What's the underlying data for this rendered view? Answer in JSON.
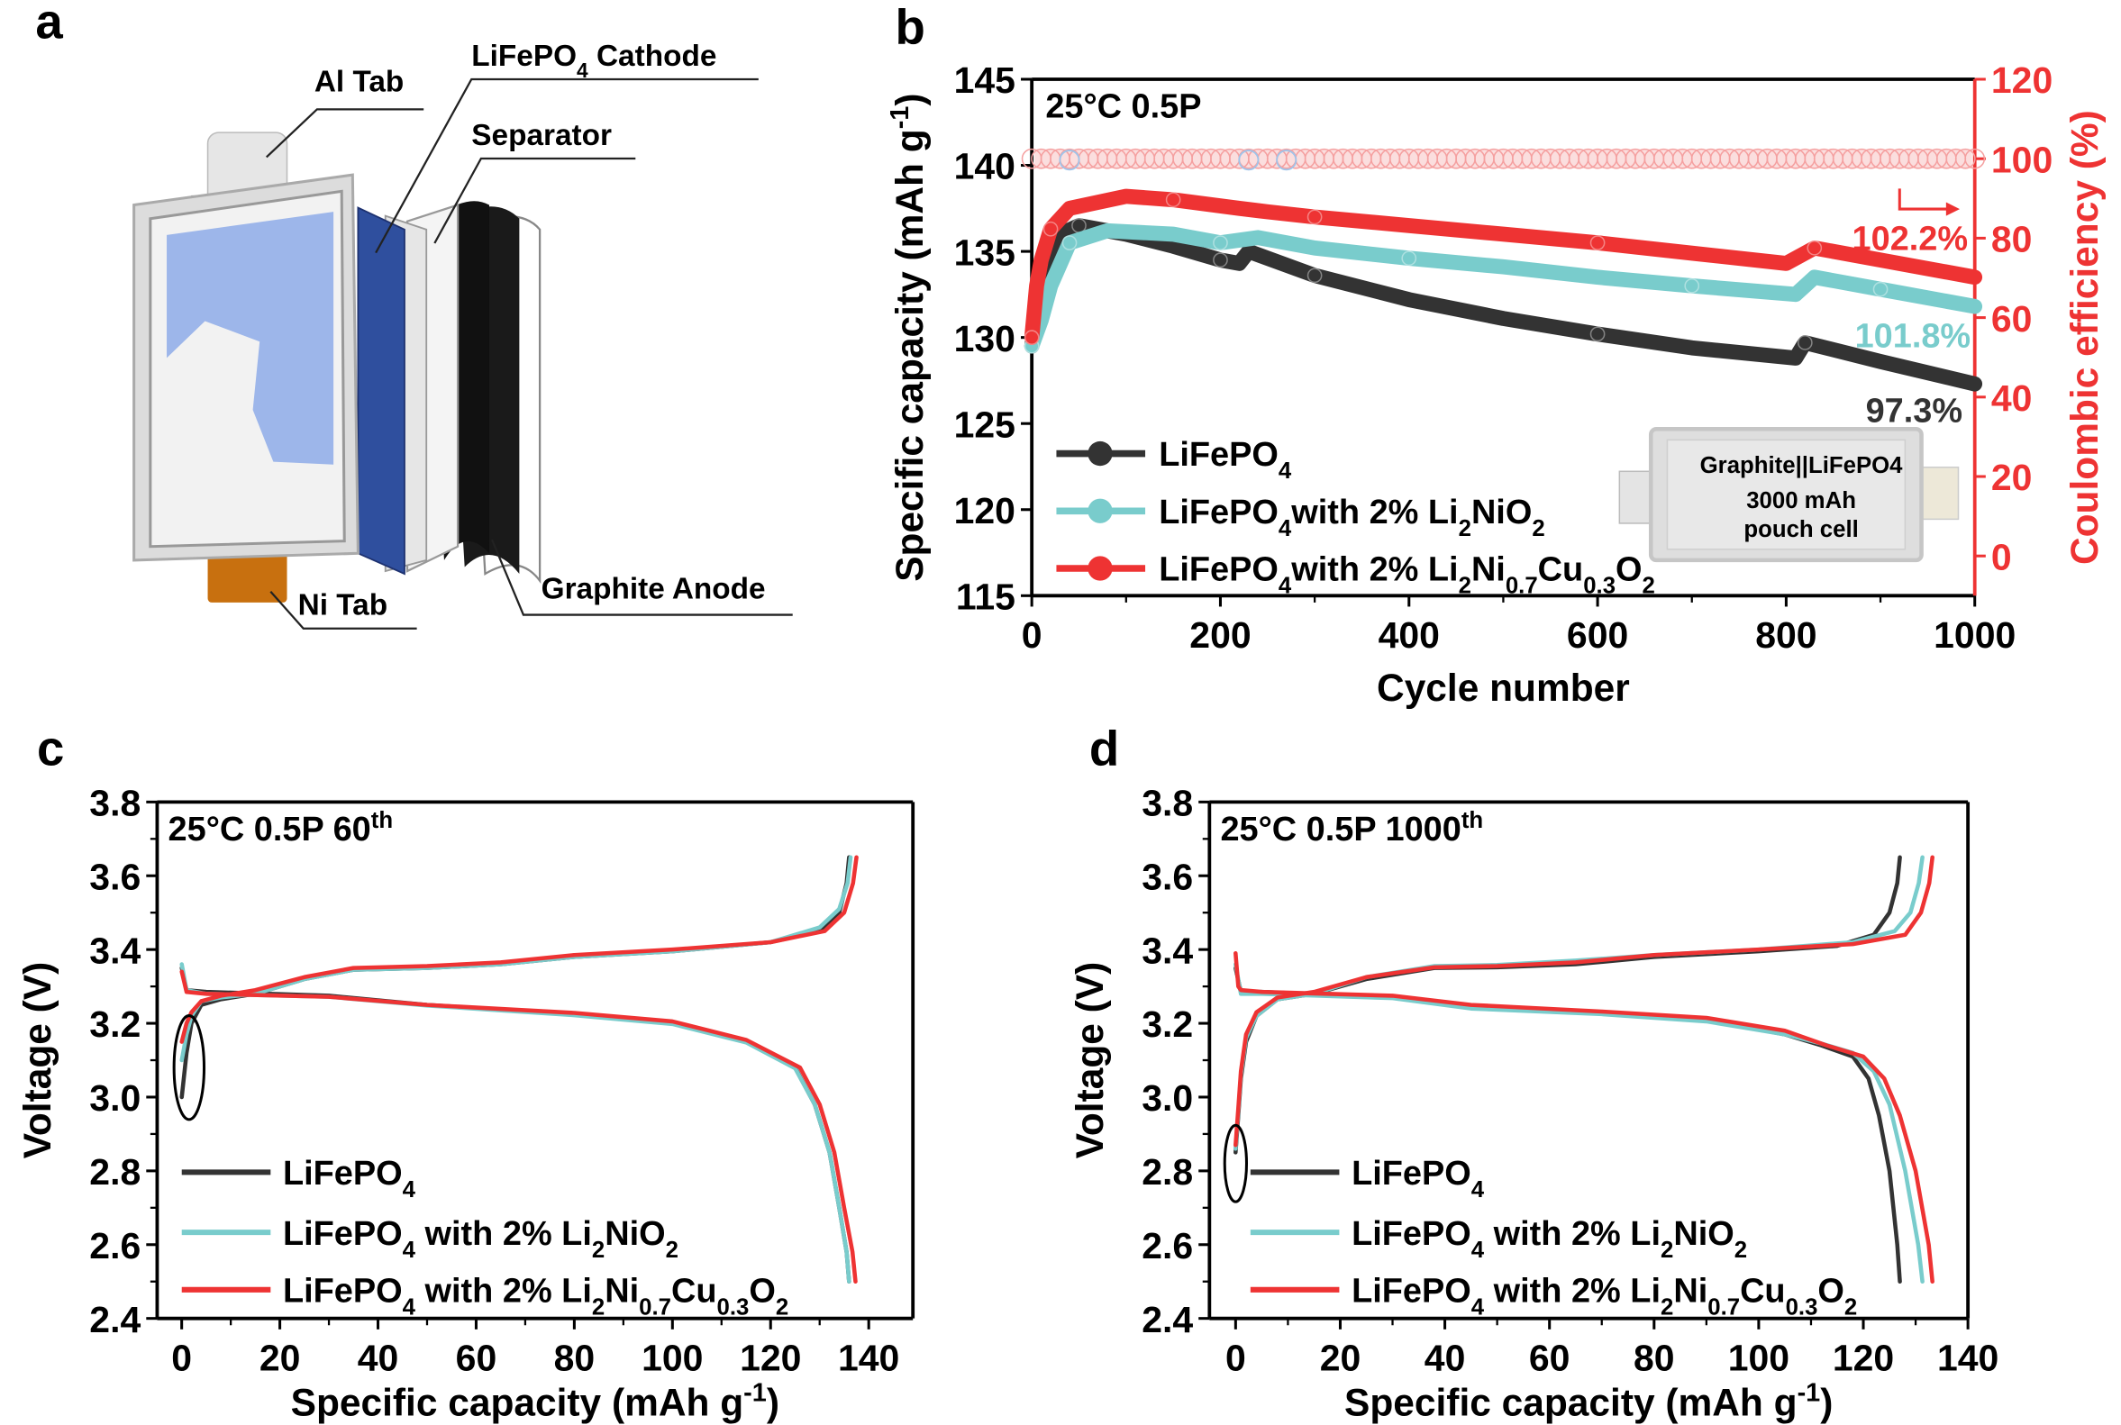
{
  "colors": {
    "black": "#333333",
    "cyan": "#79cccc",
    "red": "#ee3333",
    "ce_red": "#f5a0a0",
    "ce_blue": "#9fc4ea",
    "blue_sheet": "#2f4f9e",
    "blue_window": "#9db6ea",
    "ni_tab": "#c8700f"
  },
  "panel_a": {
    "letter": "a",
    "labels": {
      "al_tab": "Al Tab",
      "cathode": "LiFePO4 Cathode",
      "separator": "Separator",
      "anode": "Graphite Anode",
      "ni_tab": "Ni Tab"
    }
  },
  "chart_data": [
    {
      "letter": "b",
      "type": "line",
      "title": "25°C 0.5P",
      "xlabel": "Cycle number",
      "ylabel": "Specific capacity (mAh g-1)",
      "ylabel_right": "Coulombic efficiency (%)",
      "xlim": [
        0,
        1000
      ],
      "ylim": [
        115,
        145
      ],
      "ylim_right": [
        -10,
        120
      ],
      "xticks": [
        0,
        200,
        400,
        600,
        800,
        1000
      ],
      "yticks": [
        115,
        120,
        125,
        130,
        135,
        140,
        145
      ],
      "yticks_right": [
        0,
        20,
        40,
        60,
        80,
        100,
        120
      ],
      "legend": "bottom-left",
      "series": [
        {
          "name": "LiFePO4",
          "color_key": "black",
          "x": [
            0,
            10,
            30,
            50,
            100,
            150,
            200,
            220,
            230,
            300,
            400,
            500,
            600,
            700,
            810,
            820,
            900,
            1000
          ],
          "y": [
            129.5,
            133,
            136,
            136.5,
            136,
            135.3,
            134.5,
            134.3,
            135,
            133.6,
            132.2,
            131.1,
            130.2,
            129.4,
            128.8,
            129.7,
            128.6,
            127.3
          ]
        },
        {
          "name": "LiFePO4with 2% Li2NiO2",
          "color_key": "cyan",
          "x": [
            0,
            10,
            20,
            40,
            80,
            150,
            200,
            240,
            300,
            400,
            500,
            600,
            700,
            810,
            830,
            900,
            1000
          ],
          "y": [
            129.5,
            131,
            133,
            135.5,
            136.2,
            136,
            135.5,
            135.8,
            135.2,
            134.6,
            134.1,
            133.5,
            133,
            132.5,
            133.5,
            132.8,
            131.8
          ]
        },
        {
          "name": "LiFePO4with 2% Li2Ni0.7Cu0.3O2",
          "color_key": "red",
          "x": [
            0,
            5,
            10,
            20,
            40,
            100,
            150,
            220,
            250,
            300,
            400,
            500,
            600,
            700,
            800,
            830,
            900,
            1000
          ],
          "y": [
            130,
            133,
            134.5,
            136.3,
            137.5,
            138.2,
            138,
            137.5,
            137.3,
            137,
            136.5,
            136,
            135.5,
            134.9,
            134.3,
            135.2,
            134.5,
            133.5
          ]
        }
      ],
      "coulombic_efficiency": {
        "value": 100,
        "color_keys": [
          "ce_red",
          "ce_blue"
        ]
      },
      "annotations": [
        {
          "text": "102.2%",
          "color_key": "red"
        },
        {
          "text": "101.8%",
          "color_key": "cyan"
        },
        {
          "text": "97.3%",
          "color_key": "black"
        }
      ],
      "inset": {
        "lines": [
          "Graphite||LiFePO4",
          "3000 mAh",
          "pouch cell"
        ]
      }
    },
    {
      "letter": "c",
      "type": "line",
      "title": "25°C 0.5P 60",
      "title_sup": "th",
      "xlabel": "Specific capacity (mAh g-1)",
      "ylabel": "Voltage (V)",
      "xlim": [
        -5,
        149
      ],
      "ylim": [
        2.4,
        3.8
      ],
      "xticks": [
        0,
        20,
        40,
        60,
        80,
        100,
        120,
        140
      ],
      "yticks": [
        2.4,
        2.6,
        2.8,
        3.0,
        3.2,
        3.4,
        3.6,
        3.8
      ],
      "legend": "bottom-left",
      "series": [
        {
          "name": "LiFePO4",
          "color_key": "black",
          "charge": {
            "x": [
              0,
              1,
              2,
              4,
              8,
              15,
              25,
              35,
              50,
              65,
              80,
              100,
              120,
              130,
              134,
              135.5,
              136
            ],
            "y": [
              3.0,
              3.12,
              3.2,
              3.25,
              3.265,
              3.28,
              3.32,
              3.345,
              3.35,
              3.36,
              3.38,
              3.395,
              3.42,
              3.45,
              3.5,
              3.58,
              3.65
            ]
          },
          "discharge": {
            "x": [
              0,
              1,
              5,
              30,
              50,
              80,
              100,
              115,
              125,
              129,
              132,
              134,
              135.5,
              136
            ],
            "y": [
              3.35,
              3.29,
              3.285,
              3.275,
              3.25,
              3.225,
              3.2,
              3.15,
              3.08,
              2.98,
              2.85,
              2.7,
              2.58,
              2.5
            ]
          }
        },
        {
          "name": "LiFePO4 with 2% Li2NiO2",
          "color_key": "cyan",
          "charge": {
            "x": [
              0,
              1,
              2,
              4,
              8,
              15,
              25,
              35,
              50,
              65,
              80,
              100,
              120,
              130,
              134,
              135.7,
              136.3
            ],
            "y": [
              3.1,
              3.17,
              3.22,
              3.26,
              3.27,
              3.28,
              3.32,
              3.345,
              3.35,
              3.36,
              3.38,
              3.395,
              3.42,
              3.46,
              3.51,
              3.58,
              3.65
            ]
          },
          "discharge": {
            "x": [
              0,
              1,
              5,
              30,
              50,
              80,
              100,
              115,
              125,
              129,
              132,
              134,
              135.5,
              136
            ],
            "y": [
              3.36,
              3.29,
              3.28,
              3.272,
              3.248,
              3.222,
              3.198,
              3.148,
              3.078,
              2.98,
              2.85,
              2.7,
              2.58,
              2.5
            ]
          }
        },
        {
          "name": "LiFePO4 with 2% Li2Ni0.7Cu0.3O2",
          "color_key": "red",
          "charge": {
            "x": [
              0,
              1,
              2,
              4,
              8,
              15,
              25,
              35,
              50,
              65,
              80,
              100,
              120,
              131,
              135,
              136.8,
              137.5
            ],
            "y": [
              3.15,
              3.2,
              3.23,
              3.26,
              3.275,
              3.29,
              3.325,
              3.35,
              3.355,
              3.365,
              3.385,
              3.4,
              3.42,
              3.45,
              3.5,
              3.58,
              3.65
            ]
          },
          "discharge": {
            "x": [
              0,
              1,
              5,
              30,
              50,
              80,
              100,
              115,
              126,
              130,
              133,
              135,
              136.7,
              137.3
            ],
            "y": [
              3.34,
              3.285,
              3.28,
              3.272,
              3.25,
              3.228,
              3.205,
              3.155,
              3.08,
              2.98,
              2.85,
              2.7,
              2.58,
              2.5
            ]
          }
        }
      ],
      "highlight": "ellipse"
    },
    {
      "letter": "d",
      "type": "line",
      "title": "25°C 0.5P 1000",
      "title_sup": "th",
      "xlabel": "Specific capacity (mAh g-1)",
      "ylabel": "Voltage (V)",
      "xlim": [
        -5,
        140
      ],
      "ylim": [
        2.4,
        3.8
      ],
      "xticks": [
        0,
        20,
        40,
        60,
        80,
        100,
        120,
        140
      ],
      "yticks": [
        2.4,
        2.6,
        2.8,
        3.0,
        3.2,
        3.4,
        3.6,
        3.8
      ],
      "legend": "bottom-left",
      "series": [
        {
          "name": "LiFePO4",
          "color_key": "black",
          "charge": {
            "x": [
              0,
              0.5,
              1,
              2,
              4,
              8,
              15,
              25,
              38,
              50,
              65,
              80,
              100,
              115,
              122,
              125,
              126.5,
              127
            ],
            "y": [
              2.85,
              2.95,
              3.05,
              3.15,
              3.22,
              3.265,
              3.28,
              3.32,
              3.35,
              3.352,
              3.36,
              3.38,
              3.395,
              3.41,
              3.44,
              3.5,
              3.58,
              3.65
            ]
          },
          "discharge": {
            "x": [
              0,
              1,
              5,
              30,
              45,
              70,
              90,
              105,
              112,
              118,
              121,
              123,
              125,
              126.5,
              127
            ],
            "y": [
              3.35,
              3.285,
              3.285,
              3.27,
              3.245,
              3.23,
              3.21,
              3.17,
              3.14,
              3.11,
              3.05,
              2.95,
              2.8,
              2.6,
              2.5
            ]
          }
        },
        {
          "name": "LiFePO4 with 2% Li2NiO2",
          "color_key": "cyan",
          "charge": {
            "x": [
              0,
              0.5,
              1,
              2,
              4,
              8,
              15,
              25,
              38,
              50,
              65,
              80,
              100,
              118,
              126,
              129,
              130.6,
              131.3
            ],
            "y": [
              2.86,
              2.96,
              3.06,
              3.16,
              3.22,
              3.265,
              3.28,
              3.325,
              3.355,
              3.358,
              3.37,
              3.385,
              3.4,
              3.42,
              3.45,
              3.5,
              3.58,
              3.65
            ]
          },
          "discharge": {
            "x": [
              0,
              1,
              5,
              30,
              45,
              70,
              90,
              105,
              112,
              118,
              122,
              125,
              128,
              130.5,
              131.3
            ],
            "y": [
              3.36,
              3.28,
              3.28,
              3.268,
              3.24,
              3.225,
              3.205,
              3.17,
              3.145,
              3.12,
              3.07,
              2.98,
              2.8,
              2.6,
              2.5
            ]
          }
        },
        {
          "name": "LiFePO4 with 2% Li2Ni0.7Cu0.3O2",
          "color_key": "red",
          "charge": {
            "x": [
              0,
              0.5,
              1,
              2,
              4,
              8,
              15,
              25,
              38,
              50,
              65,
              80,
              100,
              118,
              128,
              131,
              132.6,
              133.2
            ],
            "y": [
              2.87,
              2.97,
              3.07,
              3.17,
              3.23,
              3.27,
              3.285,
              3.325,
              3.352,
              3.355,
              3.365,
              3.385,
              3.4,
              3.415,
              3.44,
              3.5,
              3.58,
              3.65
            ]
          },
          "discharge": {
            "x": [
              0,
              0.5,
              1,
              5,
              30,
              45,
              70,
              90,
              105,
              113,
              120,
              124,
              127,
              130,
              132.5,
              133.2
            ],
            "y": [
              3.39,
              3.3,
              3.29,
              3.285,
              3.275,
              3.25,
              3.232,
              3.215,
              3.18,
              3.14,
              3.11,
              3.05,
              2.95,
              2.8,
              2.6,
              2.5
            ]
          }
        }
      ],
      "highlight": "ellipse"
    }
  ]
}
